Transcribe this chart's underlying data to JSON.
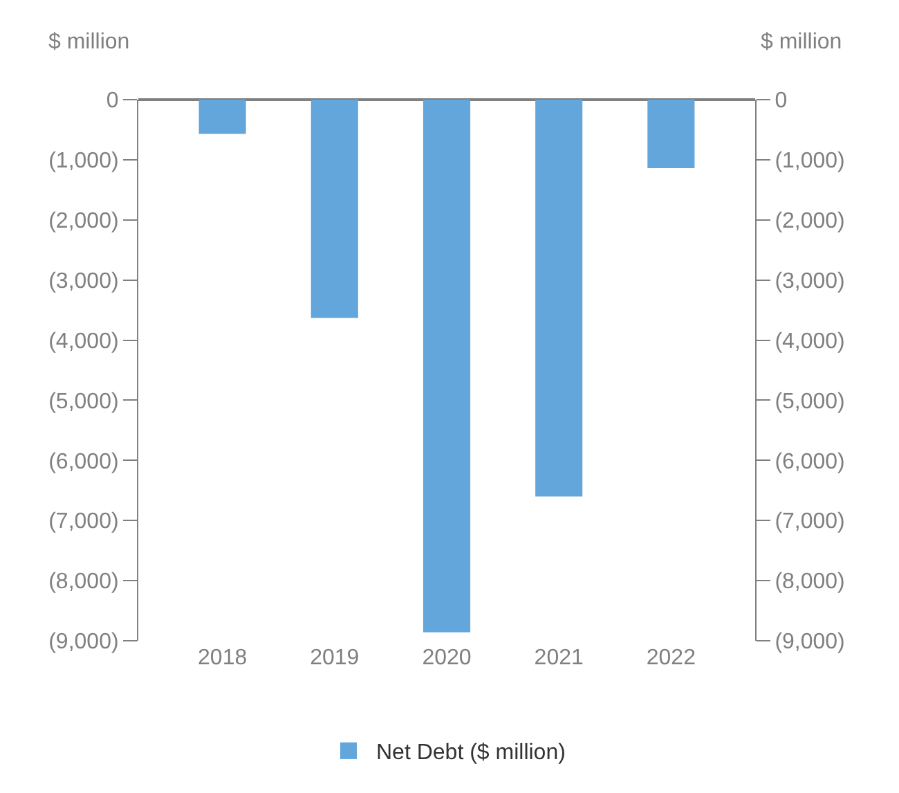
{
  "chart_data": {
    "type": "bar",
    "ylabel": "$ million",
    "y2label": "$ million",
    "categories": [
      "2018",
      "2019",
      "2020",
      "2021",
      "2022"
    ],
    "series": [
      {
        "name": "Net Debt ($ million)",
        "color": "#62a6db",
        "values": [
          -570,
          -3630,
          -8860,
          -6600,
          -1140
        ]
      }
    ],
    "ylim": [
      -9000,
      0
    ],
    "yticks": [
      0,
      {
        "value": -1000,
        "label": "(1,000)"
      },
      {
        "value": -2000,
        "label": "(2,000)"
      },
      {
        "value": -3000,
        "label": "(3,000)"
      },
      {
        "value": -4000,
        "label": "(4,000)"
      },
      {
        "value": -5000,
        "label": "(5,000)"
      },
      {
        "value": -6000,
        "label": "(6,000)"
      },
      {
        "value": -7000,
        "label": "(7,000)"
      },
      {
        "value": -8000,
        "label": "(8,000)"
      },
      {
        "value": -9000,
        "label": "(9,000)"
      }
    ],
    "y2lim": [
      -9000,
      0
    ],
    "y2ticks": [
      0,
      {
        "value": -1000,
        "label": "(1,000)"
      },
      {
        "value": -2000,
        "label": "(2,000)"
      },
      {
        "value": -3000,
        "label": "(3,000)"
      },
      {
        "value": -4000,
        "label": "(4,000)"
      },
      {
        "value": -5000,
        "label": "(5,000)"
      },
      {
        "value": -6000,
        "label": "(6,000)"
      },
      {
        "value": -7000,
        "label": "(7,000)"
      },
      {
        "value": -8000,
        "label": "(8,000)"
      },
      {
        "value": -9000,
        "label": "(9,000)"
      }
    ],
    "legend": "bottom"
  }
}
